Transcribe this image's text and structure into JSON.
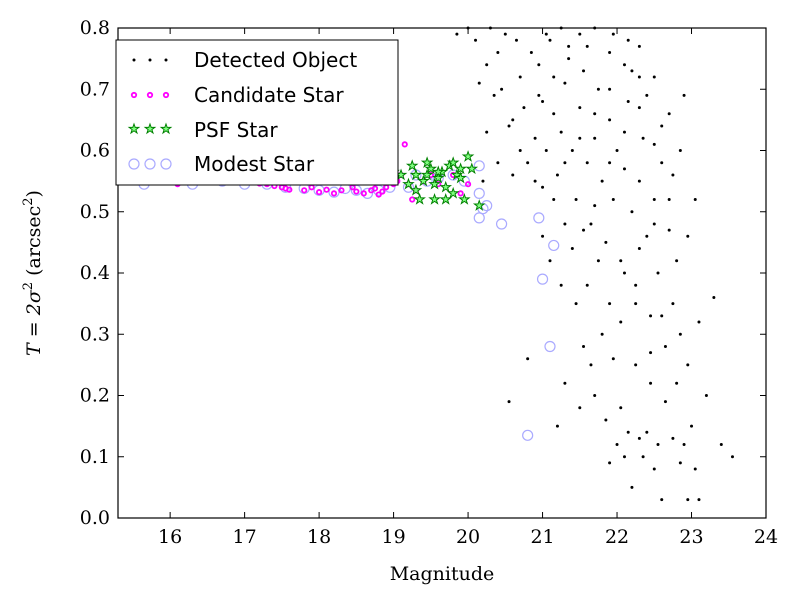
{
  "chart_data": {
    "type": "scatter",
    "xlabel": "Magnitude",
    "ylabel_parts": [
      "T",
      " = 2σ",
      "2",
      " (arcsec",
      "2",
      ")"
    ],
    "xlim": [
      15.3,
      24.0
    ],
    "ylim": [
      0.0,
      0.8
    ],
    "xticks": [
      16,
      17,
      18,
      19,
      20,
      21,
      22,
      23,
      24
    ],
    "yticks": [
      0.0,
      0.1,
      0.2,
      0.3,
      0.4,
      0.5,
      0.6,
      0.7,
      0.8
    ],
    "grid": false,
    "legend_position": "top-left",
    "series": [
      {
        "name": "Detected Object",
        "marker": "dot",
        "color": "#000000",
        "points": [
          [
            20.35,
            0.69
          ],
          [
            20.45,
            0.7
          ],
          [
            20.4,
            0.76
          ],
          [
            20.6,
            0.65
          ],
          [
            20.7,
            0.72
          ],
          [
            20.8,
            0.58
          ],
          [
            20.9,
            0.62
          ],
          [
            20.95,
            0.74
          ],
          [
            21.0,
            0.68
          ],
          [
            21.05,
            0.6
          ],
          [
            21.1,
            0.78
          ],
          [
            21.15,
            0.66
          ],
          [
            21.2,
            0.56
          ],
          [
            21.25,
            0.63
          ],
          [
            21.3,
            0.71
          ],
          [
            21.35,
            0.75
          ],
          [
            21.4,
            0.6
          ],
          [
            21.45,
            0.52
          ],
          [
            21.5,
            0.67
          ],
          [
            21.55,
            0.73
          ],
          [
            21.6,
            0.58
          ],
          [
            21.65,
            0.48
          ],
          [
            21.7,
            0.62
          ],
          [
            21.75,
            0.7
          ],
          [
            21.8,
            0.55
          ],
          [
            21.85,
            0.45
          ],
          [
            21.9,
            0.65
          ],
          [
            21.95,
            0.52
          ],
          [
            22.0,
            0.6
          ],
          [
            22.05,
            0.42
          ],
          [
            22.1,
            0.57
          ],
          [
            22.15,
            0.68
          ],
          [
            22.2,
            0.5
          ],
          [
            22.25,
            0.38
          ],
          [
            22.3,
            0.55
          ],
          [
            22.35,
            0.62
          ],
          [
            22.4,
            0.46
          ],
          [
            22.45,
            0.33
          ],
          [
            22.5,
            0.52
          ],
          [
            22.55,
            0.4
          ],
          [
            22.6,
            0.58
          ],
          [
            22.65,
            0.28
          ],
          [
            22.7,
            0.47
          ],
          [
            22.75,
            0.35
          ],
          [
            22.8,
            0.22
          ],
          [
            22.85,
            0.3
          ],
          [
            22.9,
            0.12
          ],
          [
            22.95,
            0.25
          ],
          [
            23.0,
            0.15
          ],
          [
            23.05,
            0.08
          ],
          [
            23.1,
            0.32
          ],
          [
            23.2,
            0.2
          ],
          [
            23.3,
            0.36
          ],
          [
            23.4,
            0.12
          ],
          [
            23.55,
            0.1
          ],
          [
            23.1,
            0.03
          ],
          [
            22.95,
            0.03
          ],
          [
            22.6,
            0.03
          ],
          [
            22.5,
            0.08
          ],
          [
            22.2,
            0.05
          ],
          [
            22.3,
            0.13
          ],
          [
            22.4,
            0.14
          ],
          [
            22.1,
            0.1
          ],
          [
            22.0,
            0.12
          ],
          [
            21.9,
            0.09
          ],
          [
            21.7,
            0.2
          ],
          [
            21.5,
            0.18
          ],
          [
            21.3,
            0.22
          ],
          [
            21.2,
            0.15
          ],
          [
            20.8,
            0.26
          ],
          [
            20.55,
            0.19
          ],
          [
            21.8,
            0.3
          ],
          [
            21.6,
            0.38
          ],
          [
            21.4,
            0.44
          ],
          [
            21.3,
            0.48
          ],
          [
            21.15,
            0.52
          ],
          [
            21.0,
            0.54
          ],
          [
            20.9,
            0.55
          ],
          [
            20.7,
            0.6
          ],
          [
            20.55,
            0.64
          ],
          [
            20.3,
            0.8
          ],
          [
            20.5,
            0.79
          ],
          [
            20.65,
            0.78
          ],
          [
            20.85,
            0.76
          ],
          [
            21.05,
            0.79
          ],
          [
            21.25,
            0.8
          ],
          [
            21.5,
            0.79
          ],
          [
            21.7,
            0.8
          ],
          [
            21.95,
            0.79
          ],
          [
            22.15,
            0.78
          ],
          [
            22.3,
            0.77
          ],
          [
            22.5,
            0.72
          ],
          [
            22.7,
            0.66
          ],
          [
            22.85,
            0.6
          ],
          [
            22.6,
            0.64
          ],
          [
            22.4,
            0.69
          ],
          [
            22.2,
            0.73
          ],
          [
            21.9,
            0.76
          ],
          [
            21.6,
            0.77
          ],
          [
            21.35,
            0.77
          ],
          [
            21.15,
            0.72
          ],
          [
            20.95,
            0.69
          ],
          [
            20.75,
            0.67
          ],
          [
            20.25,
            0.63
          ],
          [
            20.4,
            0.58
          ],
          [
            20.6,
            0.56
          ],
          [
            21.0,
            0.46
          ],
          [
            21.1,
            0.42
          ],
          [
            21.25,
            0.38
          ],
          [
            21.45,
            0.35
          ],
          [
            21.55,
            0.28
          ],
          [
            21.65,
            0.25
          ],
          [
            21.85,
            0.16
          ],
          [
            22.05,
            0.18
          ],
          [
            22.25,
            0.25
          ],
          [
            22.45,
            0.22
          ],
          [
            22.65,
            0.19
          ],
          [
            22.75,
            0.13
          ],
          [
            22.85,
            0.09
          ],
          [
            22.55,
            0.12
          ],
          [
            22.35,
            0.1
          ],
          [
            22.15,
            0.14
          ],
          [
            21.95,
            0.26
          ],
          [
            22.05,
            0.32
          ],
          [
            22.25,
            0.35
          ],
          [
            22.45,
            0.27
          ],
          [
            22.6,
            0.33
          ],
          [
            22.8,
            0.42
          ],
          [
            22.95,
            0.46
          ],
          [
            22.7,
            0.52
          ],
          [
            22.5,
            0.48
          ],
          [
            22.3,
            0.44
          ],
          [
            22.1,
            0.4
          ],
          [
            21.9,
            0.35
          ],
          [
            21.75,
            0.42
          ],
          [
            21.55,
            0.47
          ],
          [
            21.7,
            0.51
          ],
          [
            21.9,
            0.58
          ],
          [
            22.1,
            0.63
          ],
          [
            22.3,
            0.67
          ],
          [
            22.5,
            0.61
          ],
          [
            22.75,
            0.56
          ],
          [
            23.05,
            0.52
          ],
          [
            22.9,
            0.69
          ],
          [
            21.3,
            0.58
          ],
          [
            21.5,
            0.62
          ],
          [
            21.7,
            0.66
          ],
          [
            21.9,
            0.7
          ],
          [
            22.1,
            0.74
          ],
          [
            22.3,
            0.72
          ],
          [
            20.15,
            0.71
          ],
          [
            20.2,
            0.55
          ],
          [
            20.1,
            0.78
          ],
          [
            20.0,
            0.8
          ],
          [
            19.85,
            0.79
          ],
          [
            20.25,
            0.74
          ]
        ]
      },
      {
        "name": "Candidate Star",
        "marker": "circle-small",
        "color": "#ff00ff",
        "points": [
          [
            16.1,
            0.545
          ],
          [
            16.4,
            0.548
          ],
          [
            16.6,
            0.55
          ],
          [
            16.9,
            0.55
          ],
          [
            17.0,
            0.548
          ],
          [
            17.2,
            0.546
          ],
          [
            17.3,
            0.545
          ],
          [
            17.4,
            0.542
          ],
          [
            17.5,
            0.54
          ],
          [
            17.55,
            0.538
          ],
          [
            17.6,
            0.536
          ],
          [
            17.8,
            0.535
          ],
          [
            17.9,
            0.54
          ],
          [
            18.0,
            0.532
          ],
          [
            18.1,
            0.536
          ],
          [
            18.2,
            0.53
          ],
          [
            18.3,
            0.535
          ],
          [
            18.45,
            0.54
          ],
          [
            18.5,
            0.533
          ],
          [
            18.6,
            0.53
          ],
          [
            18.7,
            0.535
          ],
          [
            18.75,
            0.538
          ],
          [
            18.8,
            0.528
          ],
          [
            18.85,
            0.533
          ],
          [
            18.9,
            0.54
          ],
          [
            19.0,
            0.545
          ],
          [
            19.05,
            0.55
          ],
          [
            19.1,
            0.56
          ],
          [
            19.2,
            0.545
          ],
          [
            19.15,
            0.61
          ],
          [
            19.25,
            0.52
          ],
          [
            19.3,
            0.535
          ],
          [
            19.4,
            0.55
          ],
          [
            19.5,
            0.56
          ],
          [
            19.6,
            0.545
          ],
          [
            19.8,
            0.56
          ],
          [
            19.9,
            0.53
          ],
          [
            20.0,
            0.545
          ]
        ]
      },
      {
        "name": "PSF Star",
        "marker": "star",
        "color": "#008000",
        "points": [
          [
            19.0,
            0.565
          ],
          [
            19.1,
            0.56
          ],
          [
            19.2,
            0.545
          ],
          [
            19.25,
            0.575
          ],
          [
            19.3,
            0.535
          ],
          [
            19.35,
            0.52
          ],
          [
            19.4,
            0.55
          ],
          [
            19.45,
            0.56
          ],
          [
            19.5,
            0.57
          ],
          [
            19.55,
            0.545
          ],
          [
            19.6,
            0.555
          ],
          [
            19.65,
            0.565
          ],
          [
            19.7,
            0.54
          ],
          [
            19.75,
            0.575
          ],
          [
            19.8,
            0.58
          ],
          [
            19.85,
            0.56
          ],
          [
            19.9,
            0.555
          ],
          [
            19.95,
            0.52
          ],
          [
            20.0,
            0.59
          ],
          [
            20.05,
            0.57
          ],
          [
            19.55,
            0.52
          ],
          [
            19.7,
            0.52
          ],
          [
            19.8,
            0.53
          ],
          [
            19.45,
            0.58
          ],
          [
            19.6,
            0.565
          ],
          [
            19.9,
            0.57
          ],
          [
            20.15,
            0.51
          ],
          [
            19.3,
            0.56
          ]
        ]
      },
      {
        "name": "Modest Star",
        "marker": "circle-open",
        "color": "#aaaaff",
        "points": [
          [
            15.65,
            0.545
          ],
          [
            15.95,
            0.575
          ],
          [
            16.3,
            0.545
          ],
          [
            16.5,
            0.56
          ],
          [
            16.7,
            0.55
          ],
          [
            17.0,
            0.545
          ],
          [
            17.3,
            0.545
          ],
          [
            17.55,
            0.54
          ],
          [
            17.8,
            0.538
          ],
          [
            18.0,
            0.535
          ],
          [
            18.2,
            0.532
          ],
          [
            18.35,
            0.538
          ],
          [
            18.5,
            0.535
          ],
          [
            18.65,
            0.53
          ],
          [
            18.8,
            0.535
          ],
          [
            18.95,
            0.54
          ],
          [
            19.2,
            0.54
          ],
          [
            19.3,
            0.56
          ],
          [
            19.45,
            0.55
          ],
          [
            19.6,
            0.555
          ],
          [
            19.8,
            0.56
          ],
          [
            19.95,
            0.55
          ],
          [
            20.15,
            0.575
          ],
          [
            20.15,
            0.53
          ],
          [
            20.2,
            0.505
          ],
          [
            20.15,
            0.49
          ],
          [
            20.25,
            0.51
          ],
          [
            20.45,
            0.48
          ],
          [
            20.95,
            0.49
          ],
          [
            21.15,
            0.445
          ],
          [
            21.0,
            0.39
          ],
          [
            21.1,
            0.28
          ],
          [
            20.8,
            0.135
          ]
        ]
      }
    ]
  }
}
